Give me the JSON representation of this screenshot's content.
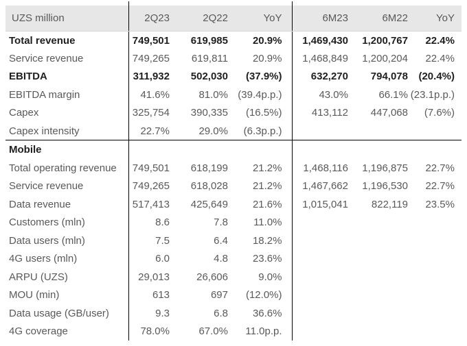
{
  "table": {
    "unit_label": "UZS million",
    "columns": [
      "2Q23",
      "2Q22",
      "YoY",
      "6M23",
      "6M22",
      "YoY"
    ],
    "colors": {
      "header_bg": "#e8e7e7",
      "text_strong": "#1f1f1f",
      "text_muted": "#595959",
      "divider": "#000000"
    },
    "sections": [
      {
        "name": "",
        "rows": [
          {
            "label": "Total revenue",
            "bold": true,
            "values": [
              "749,501",
              "619,985",
              "20.9%",
              "1,469,430",
              "1,200,767",
              "22.4%"
            ]
          },
          {
            "label": "Service revenue",
            "bold": false,
            "values": [
              "749,265",
              "619,811",
              "20.9%",
              "1,468,849",
              "1,200,204",
              "22.4%"
            ]
          },
          {
            "label": "EBITDA",
            "bold": true,
            "values": [
              "311,932",
              "502,030",
              "(37.9%)",
              "632,270",
              "794,078",
              "(20.4%)"
            ]
          },
          {
            "label": "EBITDA margin",
            "bold": false,
            "values": [
              "41.6%",
              "81.0%",
              "(39.4p.p.)",
              "43.0%",
              "66.1%",
              "(23.1p.p.)"
            ]
          },
          {
            "label": "Capex",
            "bold": false,
            "values": [
              "325,754",
              "390,335",
              "(16.5%)",
              "413,112",
              "447,068",
              "(7.6%)"
            ]
          },
          {
            "label": "Capex intensity",
            "bold": false,
            "values": [
              "22.7%",
              "29.0%",
              "(6.3p.p.)",
              "",
              "",
              ""
            ]
          }
        ]
      },
      {
        "name": "Mobile",
        "rows": [
          {
            "label": "Total operating revenue",
            "bold": false,
            "values": [
              "749,501",
              "618,199",
              "21.2%",
              "1,468,116",
              "1,196,875",
              "22.7%"
            ]
          },
          {
            "label": "Service revenue",
            "bold": false,
            "values": [
              "749,265",
              "618,028",
              "21.2%",
              "1,467,662",
              "1,196,530",
              "22.7%"
            ]
          },
          {
            "label": "Data revenue",
            "bold": false,
            "values": [
              "517,413",
              "425,649",
              "21.6%",
              "1,015,041",
              "822,119",
              "23.5%"
            ]
          },
          {
            "label": "Customers (mln)",
            "bold": false,
            "values": [
              "8.6",
              "7.8",
              "11.0%",
              "",
              "",
              ""
            ]
          },
          {
            "label": "Data users (mln)",
            "bold": false,
            "values": [
              "7.5",
              "6.4",
              "18.2%",
              "",
              "",
              ""
            ]
          },
          {
            "label": "4G users (mln)",
            "bold": false,
            "values": [
              "6.0",
              "4.8",
              "23.6%",
              "",
              "",
              ""
            ]
          },
          {
            "label": "ARPU (UZS)",
            "bold": false,
            "values": [
              "29,013",
              "26,606",
              "9.0%",
              "",
              "",
              ""
            ]
          },
          {
            "label": "MOU (min)",
            "bold": false,
            "values": [
              "613",
              "697",
              "(12.0%)",
              "",
              "",
              ""
            ]
          },
          {
            "label": "Data usage (GB/user)",
            "bold": false,
            "values": [
              "9.3",
              "6.8",
              "36.6%",
              "",
              "",
              ""
            ]
          },
          {
            "label": "4G coverage",
            "bold": false,
            "values": [
              "78.0%",
              "67.0%",
              "11.0p.p.",
              "",
              "",
              ""
            ]
          }
        ]
      }
    ]
  }
}
